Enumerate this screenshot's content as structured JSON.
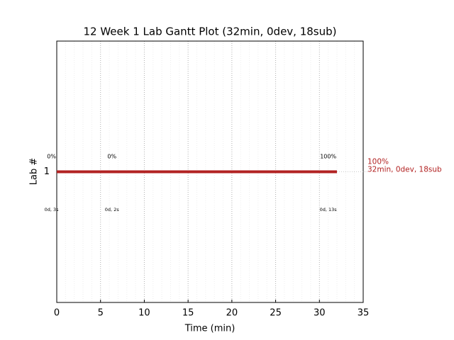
{
  "chart_data": {
    "type": "gantt",
    "title": "12 Week 1 Lab Gantt Plot (32min, 0dev, 18sub)",
    "x_label": "Time (min)",
    "y_label": "Lab #",
    "categories": [
      "1"
    ],
    "bars": [
      {
        "category": "1",
        "start": 0,
        "end": 32,
        "color": "#b22222"
      }
    ],
    "end_labels": [
      "100%",
      "32min, 0dev, 18sub"
    ],
    "annotations": [
      {
        "x": -0.6,
        "top": "0%",
        "bottom": "0d, 3s"
      },
      {
        "x": 6.3,
        "top": "0%",
        "bottom": "0d, 2s"
      },
      {
        "x": 31,
        "top": "100%",
        "bottom": "0d, 13s"
      }
    ],
    "xlim": [
      0,
      35
    ],
    "xticks": [
      0,
      5,
      10,
      15,
      20,
      25,
      30,
      35
    ],
    "xminorticks": [
      1,
      2,
      3,
      4,
      6,
      7,
      8,
      9,
      11,
      12,
      13,
      14,
      16,
      17,
      18,
      19,
      21,
      22,
      23,
      24,
      26,
      27,
      28,
      29,
      31,
      32,
      33,
      34
    ],
    "grid": true
  }
}
